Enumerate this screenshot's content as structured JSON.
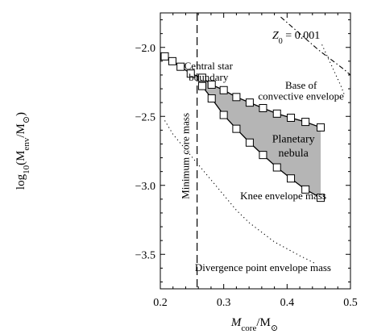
{
  "chart_data": {
    "type": "line",
    "title": "",
    "xlabel_main": "M",
    "xlabel_sub": "core",
    "xlabel_unit": "/M",
    "xlabel_sun": "⊙",
    "ylabel_prefix": "log",
    "ylabel_base": "10",
    "ylabel_main": "(M",
    "ylabel_sub": "env",
    "ylabel_unit": "/M",
    "ylabel_sun": "⊙",
    "ylabel_close": ")",
    "xlim": [
      0.2,
      0.5
    ],
    "ylim": [
      -3.75,
      -1.75
    ],
    "xticks": [
      0.2,
      0.3,
      0.4,
      0.5
    ],
    "xtick_labels": [
      "0.2",
      "0.3",
      "0.4",
      "0.5"
    ],
    "yticks": [
      -2.0,
      -2.5,
      -3.0,
      -3.5
    ],
    "ytick_labels": [
      "−2.0",
      "−2.5",
      "−3.0",
      "−3.5"
    ],
    "x_minor_step": 0.02,
    "y_minor_step": 0.1,
    "grid": false,
    "legend": "none",
    "metallicity_label": "Z",
    "metallicity_sub": "0",
    "metallicity_value": " = 0.001",
    "series": [
      {
        "style": "line-with-square-markers",
        "x": [
          0.207,
          0.219,
          0.232,
          0.248,
          0.266,
          0.281,
          0.3,
          0.32,
          0.341,
          0.362,
          0.384,
          0.406,
          0.429,
          0.453
        ],
        "y": [
          -2.065,
          -2.1,
          -2.14,
          -2.19,
          -2.22,
          -2.27,
          -2.31,
          -2.36,
          -2.4,
          -2.44,
          -2.48,
          -2.51,
          -2.54,
          -2.58
        ]
      },
      {
        "style": "line-with-square-markers",
        "x": [
          0.266,
          0.281,
          0.3,
          0.32,
          0.341,
          0.362,
          0.384,
          0.406,
          0.429,
          0.453
        ],
        "y": [
          -2.28,
          -2.37,
          -2.49,
          -2.59,
          -2.69,
          -2.78,
          -2.87,
          -2.95,
          -3.03,
          -3.09
        ]
      },
      {
        "style": "dotted",
        "x": [
          0.207,
          0.22,
          0.24,
          0.26,
          0.28,
          0.3,
          0.32,
          0.34,
          0.36,
          0.38,
          0.4,
          0.42,
          0.44,
          0.445
        ],
        "y": [
          -2.53,
          -2.63,
          -2.74,
          -2.85,
          -2.96,
          -3.07,
          -3.18,
          -3.27,
          -3.34,
          -3.41,
          -3.46,
          -3.51,
          -3.555,
          -3.57
        ]
      },
      {
        "style": "dash-dot",
        "x": [
          0.39,
          0.41,
          0.43,
          0.45,
          0.47,
          0.49,
          0.5
        ],
        "y": [
          -1.78,
          -1.86,
          -1.94,
          -2.02,
          -2.09,
          -2.16,
          -2.2
        ]
      },
      {
        "style": "dotted",
        "x": [
          0.455,
          0.465,
          0.475,
          0.485,
          0.49
        ],
        "y": [
          -1.98,
          -2.08,
          -2.18,
          -2.28,
          -2.34
        ]
      }
    ],
    "shaded_region": {
      "upper": {
        "x": [
          0.266,
          0.281,
          0.3,
          0.32,
          0.341,
          0.362,
          0.384,
          0.406,
          0.429,
          0.453
        ],
        "y": [
          -2.22,
          -2.27,
          -2.31,
          -2.36,
          -2.4,
          -2.44,
          -2.48,
          -2.51,
          -2.54,
          -2.58
        ]
      },
      "lower": {
        "x": [
          0.266,
          0.281,
          0.3,
          0.32,
          0.341,
          0.362,
          0.384,
          0.406,
          0.429,
          0.453
        ],
        "y": [
          -2.28,
          -2.37,
          -2.49,
          -2.59,
          -2.69,
          -2.78,
          -2.87,
          -2.95,
          -3.03,
          -3.09
        ]
      },
      "color": "#b5b5b5"
    },
    "vertical_lines": [
      {
        "x": 0.258,
        "style": "dashed"
      }
    ],
    "annotations": [
      {
        "text": "Central star",
        "x": 0.276,
        "y": -2.16
      },
      {
        "text": "boundary",
        "x": 0.276,
        "y": -2.24
      },
      {
        "text": "Base of",
        "x": 0.422,
        "y": -2.3
      },
      {
        "text": "convective envelope",
        "x": 0.422,
        "y": -2.38
      },
      {
        "text": "Planetary",
        "x": 0.41,
        "y": -2.69
      },
      {
        "text": "nebula",
        "x": 0.41,
        "y": -2.79
      },
      {
        "text": "Knee envelope mass",
        "x": 0.394,
        "y": -3.1
      },
      {
        "text": "Divergence point envelope mass",
        "x": 0.362,
        "y": -3.62
      },
      {
        "text": "Minimum core mass",
        "x": 0.245,
        "y": -3.1,
        "rotate": -90
      }
    ]
  }
}
